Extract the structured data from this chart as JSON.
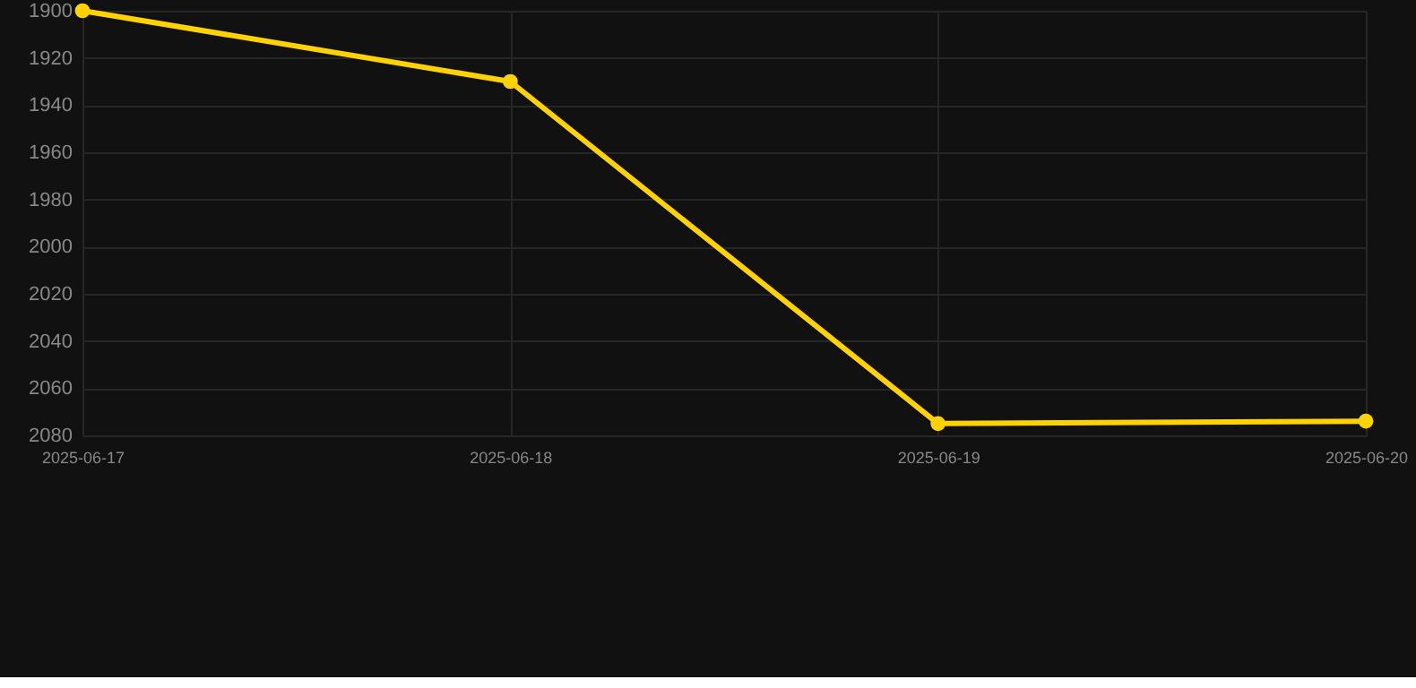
{
  "chart_data": {
    "type": "line",
    "x": [
      "2025-06-17",
      "2025-06-18",
      "2025-06-19",
      "2025-06-20"
    ],
    "series": [
      {
        "color": "#ffd200",
        "values": [
          1900,
          1930,
          2075,
          2074
        ]
      }
    ],
    "xlim": [
      "2025-06-17",
      "2025-06-20"
    ],
    "xticks": [
      "2025-06-17",
      "2025-06-18",
      "2025-06-19",
      "2025-06-20"
    ],
    "ylim": [
      2080,
      1900
    ],
    "yticks": [
      1900,
      1920,
      1940,
      1960,
      1980,
      2000,
      2020,
      2040,
      2060,
      2080
    ],
    "grid": true,
    "marker": "circle",
    "line_style": "solid"
  }
}
